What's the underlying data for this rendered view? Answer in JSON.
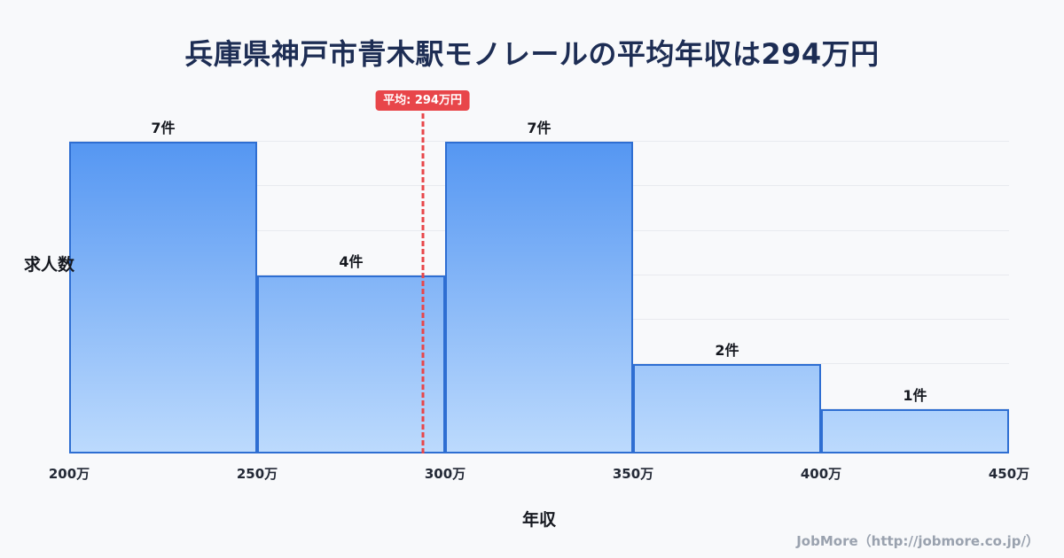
{
  "title": "兵庫県神戸市青木駅モノレールの平均年収は294万円",
  "chart_data": {
    "type": "bar",
    "subtype": "histogram",
    "title": "兵庫県神戸市青木駅モノレールの平均年収は294万円",
    "xlabel": "年収",
    "ylabel": "求人数",
    "bin_edges": [
      200,
      250,
      300,
      350,
      400,
      450
    ],
    "bin_edge_labels": [
      "200万",
      "250万",
      "300万",
      "350万",
      "400万",
      "450万"
    ],
    "values": [
      7,
      4,
      7,
      2,
      1
    ],
    "bar_labels": [
      "7件",
      "4件",
      "7件",
      "2件",
      "1件"
    ],
    "ylim": [
      0,
      7
    ],
    "grid": "horizontal",
    "legend": "none",
    "mean": 294,
    "mean_label": "平均: 294万円",
    "colors": {
      "bar_fill_top": "#5496f2",
      "bar_fill_bottom": "#bcdafd",
      "bar_border": "#2e6ed2",
      "mean_line": "#e8464a",
      "title_text": "#1d2d54",
      "background": "#f8f9fb"
    }
  },
  "footer": {
    "credit": "JobMore（http://jobmore.co.jp/）"
  }
}
